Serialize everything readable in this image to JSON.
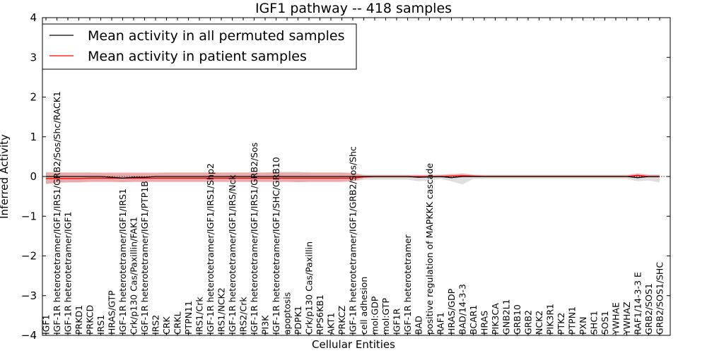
{
  "chart_data": {
    "type": "line",
    "title": "IGF1 pathway -- 418 samples",
    "xlabel": "Cellular Entities",
    "ylabel": "Inferred Activity",
    "ylim": [
      -4,
      4
    ],
    "yticks": [
      -4,
      -3,
      -2,
      -1,
      0,
      1,
      2,
      3,
      4
    ],
    "ytick_labels": [
      "−4",
      "−3",
      "−2",
      "−1",
      "0",
      "1",
      "2",
      "3",
      "4"
    ],
    "grid": false,
    "legend_position": "top-left",
    "categories": [
      "IGF1",
      "IGF-1R heterotetramer/IGF1/IRS1/GRB2/Sos/Shc/RACK1",
      "IGF-1R heterotetramer/IGF1",
      "PRKD1",
      "PRKCD",
      "IRS1",
      "HRAS/GTP",
      "IGF-1R heterotetramer/IGF1/IRS1",
      "Crk/p130 Cas/Paxillin/FAK1",
      "IGF-1R heterotetramer/IGF1/PTP1B",
      "IRS2",
      "CRK",
      "CRKL",
      "PTPN11",
      "IRS1/Crk",
      "IGF-1R heterotetramer/IGF1/IRS1/Shp2",
      "IRS1/NCK2",
      "IGF-1R heterotetramer/IGF1/IRS/Nck",
      "IRS2/Crk",
      "IGF-1R heterotetramer/IGF1/IRS1/GRB2/Sos",
      "PI3K",
      "IGF-1R heterotetramer/IGF1/SHC/GRB10",
      "apoptosis",
      "PDPK1",
      "Crk/p130 Cas/Paxillin",
      "RPS6KB1",
      "AKT1",
      "PRKCZ",
      "IGF-1R heterotetramer/IGF1/GRB2/Sos/Shc",
      "cell adhesion",
      "mol:GDP",
      "mol:GTP",
      "IGF1R",
      "IGF-1R heterotetramer",
      "BAD",
      "positive regulation of MAPKKK cascade",
      "RAF1",
      "HRAS/GDP",
      "BAD/14-3-3",
      "BCAR1",
      "HRAS",
      "PIK3CA",
      "GNB2L1",
      "GRB10",
      "GRB2",
      "NCK2",
      "PIK3R1",
      "PTK2",
      "PTPN1",
      "PXN",
      "SHC1",
      "SOS1",
      "YWHAE",
      "YWHAZ",
      "RAF1/14-3-3 E",
      "GRB2/SOS1",
      "GRB2/SOS1/SHC"
    ],
    "series": [
      {
        "name": "Mean activity in all permuted samples",
        "color": "#000000",
        "values": [
          0.0,
          0.0,
          0.0,
          0.0,
          0.0,
          0.0,
          -0.02,
          -0.04,
          -0.02,
          -0.02,
          0.0,
          0.0,
          0.0,
          0.0,
          0.0,
          0.0,
          0.0,
          0.0,
          0.0,
          0.0,
          0.0,
          0.0,
          0.0,
          0.0,
          0.0,
          0.0,
          0.0,
          0.0,
          0.0,
          0.0,
          0.0,
          0.0,
          0.0,
          0.0,
          -0.02,
          -0.01,
          0.0,
          -0.03,
          0.0,
          0.0,
          0.0,
          0.0,
          0.0,
          0.0,
          0.0,
          0.0,
          0.0,
          0.0,
          0.0,
          0.0,
          0.0,
          0.0,
          0.0,
          0.0,
          -0.03,
          0.0,
          0.0
        ],
        "band_low": [
          -0.2,
          -0.15,
          -0.15,
          -0.15,
          -0.12,
          -0.12,
          -0.12,
          -0.15,
          -0.12,
          -0.12,
          -0.12,
          -0.12,
          -0.12,
          -0.12,
          -0.12,
          -0.12,
          -0.12,
          -0.12,
          -0.12,
          -0.12,
          -0.12,
          -0.12,
          -0.12,
          -0.15,
          -0.12,
          -0.12,
          -0.12,
          -0.12,
          -0.12,
          -0.08,
          -0.08,
          -0.08,
          -0.08,
          -0.08,
          -0.12,
          -0.1,
          -0.06,
          -0.12,
          -0.2,
          -0.06,
          -0.06,
          -0.06,
          -0.06,
          -0.06,
          -0.06,
          -0.06,
          -0.06,
          -0.06,
          -0.06,
          -0.06,
          -0.06,
          -0.06,
          -0.06,
          -0.06,
          -0.12,
          -0.1,
          -0.15
        ],
        "band_high": [
          0.12,
          0.1,
          0.1,
          0.1,
          0.1,
          0.08,
          0.08,
          0.08,
          0.08,
          0.08,
          0.08,
          0.1,
          0.1,
          0.1,
          0.1,
          0.1,
          0.1,
          0.1,
          0.1,
          0.1,
          0.1,
          0.12,
          0.12,
          0.12,
          0.1,
          0.1,
          0.1,
          0.1,
          0.1,
          0.05,
          0.05,
          0.05,
          0.05,
          0.05,
          0.05,
          0.05,
          0.05,
          0.05,
          0.08,
          0.05,
          0.05,
          0.05,
          0.05,
          0.05,
          0.05,
          0.05,
          0.05,
          0.05,
          0.05,
          0.05,
          0.05,
          0.05,
          0.05,
          0.05,
          0.05,
          0.05,
          0.05
        ]
      },
      {
        "name": "Mean activity in patient samples",
        "color": "#ff0000",
        "values": [
          -0.05,
          -0.05,
          -0.05,
          -0.05,
          -0.04,
          -0.04,
          -0.04,
          -0.04,
          -0.04,
          -0.04,
          -0.04,
          -0.04,
          -0.04,
          -0.04,
          -0.04,
          -0.04,
          -0.04,
          -0.04,
          -0.04,
          -0.04,
          -0.04,
          -0.04,
          -0.04,
          -0.04,
          -0.04,
          -0.04,
          -0.04,
          -0.04,
          -0.04,
          -0.01,
          0.0,
          0.0,
          0.0,
          0.0,
          0.0,
          0.0,
          0.0,
          0.01,
          0.02,
          0.01,
          0.0,
          0.0,
          0.0,
          0.0,
          0.0,
          0.0,
          0.0,
          0.0,
          0.0,
          0.0,
          0.0,
          0.0,
          0.0,
          0.0,
          0.03,
          0.0,
          0.0
        ],
        "band_low": [
          -0.18,
          -0.16,
          -0.15,
          -0.15,
          -0.14,
          -0.14,
          -0.14,
          -0.14,
          -0.14,
          -0.14,
          -0.14,
          -0.14,
          -0.14,
          -0.14,
          -0.14,
          -0.14,
          -0.14,
          -0.14,
          -0.14,
          -0.14,
          -0.14,
          -0.14,
          -0.14,
          -0.14,
          -0.14,
          -0.14,
          -0.14,
          -0.14,
          -0.12,
          -0.04,
          -0.03,
          -0.03,
          -0.03,
          -0.03,
          -0.03,
          -0.03,
          -0.03,
          -0.03,
          -0.02,
          -0.02,
          -0.02,
          -0.02,
          -0.02,
          -0.02,
          -0.02,
          -0.02,
          -0.02,
          -0.02,
          -0.02,
          -0.02,
          -0.02,
          -0.02,
          -0.02,
          -0.02,
          -0.02,
          -0.03,
          -0.03
        ],
        "band_high": [
          0.1,
          0.1,
          0.1,
          0.1,
          0.1,
          0.1,
          0.1,
          0.1,
          0.1,
          0.1,
          0.1,
          0.1,
          0.1,
          0.1,
          0.1,
          0.1,
          0.1,
          0.1,
          0.1,
          0.1,
          0.1,
          0.1,
          0.1,
          0.1,
          0.1,
          0.1,
          0.1,
          0.1,
          0.08,
          0.03,
          0.03,
          0.03,
          0.03,
          0.03,
          0.03,
          0.03,
          0.04,
          0.06,
          0.07,
          0.04,
          0.03,
          0.03,
          0.03,
          0.03,
          0.03,
          0.03,
          0.03,
          0.03,
          0.03,
          0.03,
          0.03,
          0.03,
          0.03,
          0.03,
          0.08,
          0.04,
          0.04
        ]
      }
    ]
  }
}
